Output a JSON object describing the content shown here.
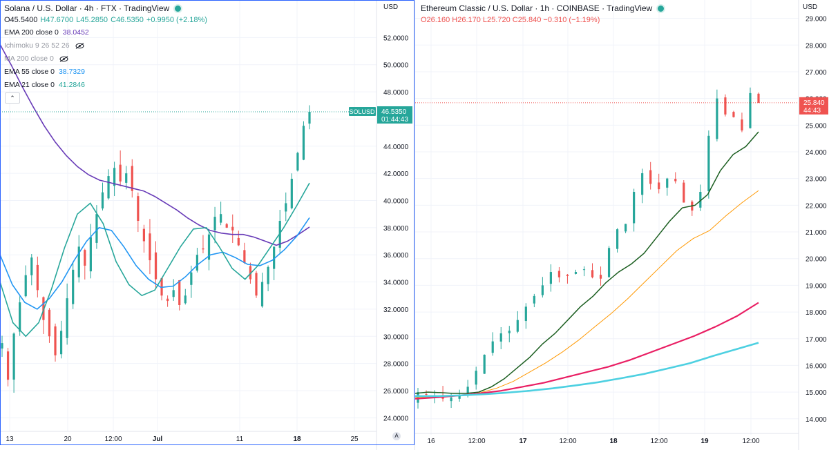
{
  "left": {
    "title": "Solana / U.S. Dollar · 4h · FTX · TradingView",
    "ohlc": {
      "o": "O45.5400",
      "h": "H47.6700",
      "l": "L45.2850",
      "c": "C46.5350",
      "chg": "+0.9950 (+2.18%)"
    },
    "indicators": [
      {
        "label": "EMA 200 close 0",
        "value": "38.0452",
        "color": "#673ab7",
        "hidden": false
      },
      {
        "label": "Ichimoku 9 26 52 26",
        "value": "",
        "color": "#9598a1",
        "hidden": true
      },
      {
        "label": "MA 200 close 0",
        "value": "",
        "color": "#9598a1",
        "hidden": true
      },
      {
        "label": "EMA 55 close 0",
        "value": "38.7329",
        "color": "#2196f3",
        "hidden": false
      },
      {
        "label": "EMA 21 close 0",
        "value": "41.2846",
        "color": "#26a69a",
        "hidden": false
      }
    ],
    "currency": "USD",
    "symbol_tag": "SOLUSD",
    "price_tag": "46.5350",
    "countdown": "01:44:43",
    "collapse_icon": "chevron-up-icon",
    "scale_icon_label": "A"
  },
  "right": {
    "title": "Ethereum Classic / U.S. Dollar · 1h · COINBASE · TradingView",
    "ohlc": {
      "o": "O26.160",
      "h": "H26.170",
      "l": "L25.720",
      "c": "C25.840",
      "chg": "−0.310 (−1.19%)"
    },
    "currency": "USD",
    "price_tag": "25.840",
    "countdown": "44:43"
  },
  "colors": {
    "up": "#26a69a",
    "down": "#ef5350",
    "grid": "#f0f3fa",
    "text": "#131722"
  },
  "chart_data": [
    {
      "type": "candlestick",
      "title": "Solana / U.S. Dollar · 4h · FTX",
      "y_ticks": [
        24,
        26,
        28,
        30,
        32,
        34,
        36,
        38,
        40,
        42,
        44,
        46,
        48,
        50,
        52
      ],
      "y_tick_labels": [
        "24.0000",
        "26.0000",
        "28.0000",
        "30.0000",
        "32.0000",
        "34.0000",
        "36.0000",
        "38.0000",
        "40.0000",
        "42.0000",
        "44.0000",
        "46.0000",
        "48.0000",
        "50.0000",
        "52.0000"
      ],
      "x_tick_labels": [
        "13",
        "20",
        "12:00",
        "Jul",
        "11",
        "18",
        "25"
      ],
      "ylim": [
        23,
        54
      ],
      "closes": [
        29.5,
        26.8,
        30.2,
        32.5,
        34.5,
        35.8,
        33.4,
        31.2,
        30.0,
        28.6,
        30.4,
        32.8,
        34.9,
        36.6,
        35.2,
        37.3,
        39.0,
        40.6,
        41.8,
        42.4,
        41.4,
        42.0,
        40.7,
        38.5,
        37.0,
        35.6,
        34.2,
        33.0,
        32.6,
        33.4,
        32.3,
        33.0,
        34.7,
        36.0,
        36.4,
        37.5,
        38.8,
        39.0,
        38.0,
        37.8,
        36.7,
        35.4,
        34.2,
        33.0,
        34.0,
        35.1,
        36.6,
        38.5,
        39.8,
        41.6,
        43.5,
        45.5,
        46.53
      ],
      "series": [
        {
          "name": "EMA 200 close 0",
          "color": "#673ab7",
          "last": 38.0452,
          "values": [
            51.5,
            50.0,
            48.4,
            46.9,
            45.5,
            44.3,
            43.3,
            42.5,
            41.9,
            41.5,
            41.3,
            41.1,
            40.9,
            40.7,
            40.3,
            39.8,
            39.3,
            38.7,
            38.2,
            37.8,
            37.6,
            37.5,
            37.5,
            37.3,
            37.0,
            36.7,
            37.0,
            37.5,
            38.0452
          ]
        },
        {
          "name": "EMA 55 close 0",
          "color": "#2196f3",
          "last": 38.7329,
          "values": [
            36.0,
            33.8,
            32.5,
            32.0,
            32.8,
            34.0,
            35.6,
            37.0,
            38.0,
            37.8,
            36.6,
            35.2,
            34.2,
            33.6,
            33.7,
            34.4,
            35.3,
            36.0,
            36.2,
            35.8,
            35.3,
            35.2,
            35.6,
            36.4,
            37.4,
            38.7329
          ]
        },
        {
          "name": "EMA 21 close 0",
          "color": "#26a69a",
          "last": 41.2846,
          "values": [
            34.0,
            31.0,
            30.0,
            31.0,
            33.5,
            36.5,
            39.0,
            39.8,
            38.3,
            35.5,
            33.8,
            33.0,
            33.4,
            35.0,
            36.6,
            37.9,
            38.0,
            36.6,
            35.0,
            34.2,
            35.2,
            36.6,
            38.0,
            39.6,
            41.2846
          ]
        }
      ]
    },
    {
      "type": "candlestick",
      "title": "Ethereum Classic / U.S. Dollar · 1h · COINBASE",
      "y_ticks": [
        14,
        15,
        16,
        17,
        18,
        19,
        20,
        21,
        22,
        23,
        24,
        25,
        26,
        27,
        28,
        29
      ],
      "y_tick_labels": [
        "14.000",
        "15.000",
        "16.000",
        "17.000",
        "18.000",
        "19.000",
        "20.000",
        "21.000",
        "22.000",
        "23.000",
        "24.000",
        "25.000",
        "26.000",
        "27.000",
        "28.000",
        "29.000"
      ],
      "x_tick_labels": [
        "16",
        "12:00",
        "17",
        "12:00",
        "18",
        "12:00",
        "19",
        "12:00"
      ],
      "ylim": [
        13.4,
        29.3
      ],
      "closes": [
        15.0,
        14.9,
        14.8,
        14.75,
        14.8,
        14.9,
        15.2,
        15.8,
        16.4,
        16.9,
        17.2,
        17.3,
        17.7,
        18.2,
        18.6,
        19.0,
        19.5,
        19.3,
        19.35,
        19.5,
        19.6,
        19.3,
        19.25,
        20.4,
        21.1,
        21.3,
        22.5,
        23.2,
        22.8,
        22.6,
        23.0,
        22.9,
        22.1,
        21.8,
        22.5,
        24.6,
        26.0,
        25.4,
        25.3,
        24.8,
        26.2,
        25.84
      ],
      "series": [
        {
          "name": "EMA (dark green)",
          "color": "#1b5e20",
          "values": [
            14.95,
            15.0,
            14.98,
            14.95,
            14.95,
            15.0,
            15.2,
            15.5,
            15.9,
            16.3,
            16.8,
            17.2,
            17.7,
            18.2,
            18.6,
            19.1,
            19.5,
            19.8,
            20.2,
            20.8,
            21.4,
            21.9,
            22.0,
            22.4,
            23.3,
            23.9,
            24.2,
            24.75
          ]
        },
        {
          "name": "EMA (orange)",
          "color": "#ff9800",
          "values": [
            14.8,
            14.82,
            14.85,
            14.9,
            14.98,
            15.15,
            15.4,
            15.75,
            16.1,
            16.5,
            16.95,
            17.45,
            17.95,
            18.5,
            19.1,
            19.7,
            20.3,
            20.75,
            21.05,
            21.6,
            22.1,
            22.55
          ]
        },
        {
          "name": "EMA (crimson)",
          "color": "#e91e63",
          "values": [
            14.75,
            14.8,
            14.87,
            14.95,
            15.05,
            15.2,
            15.35,
            15.55,
            15.75,
            15.95,
            16.2,
            16.5,
            16.8,
            17.1,
            17.45,
            17.85,
            18.35
          ]
        },
        {
          "name": "EMA (cyan)",
          "color": "#4dd0e1",
          "values": [
            14.85,
            14.85,
            14.88,
            14.92,
            14.98,
            15.05,
            15.14,
            15.25,
            15.37,
            15.52,
            15.68,
            15.88,
            16.08,
            16.35,
            16.6,
            16.85
          ]
        }
      ]
    }
  ]
}
